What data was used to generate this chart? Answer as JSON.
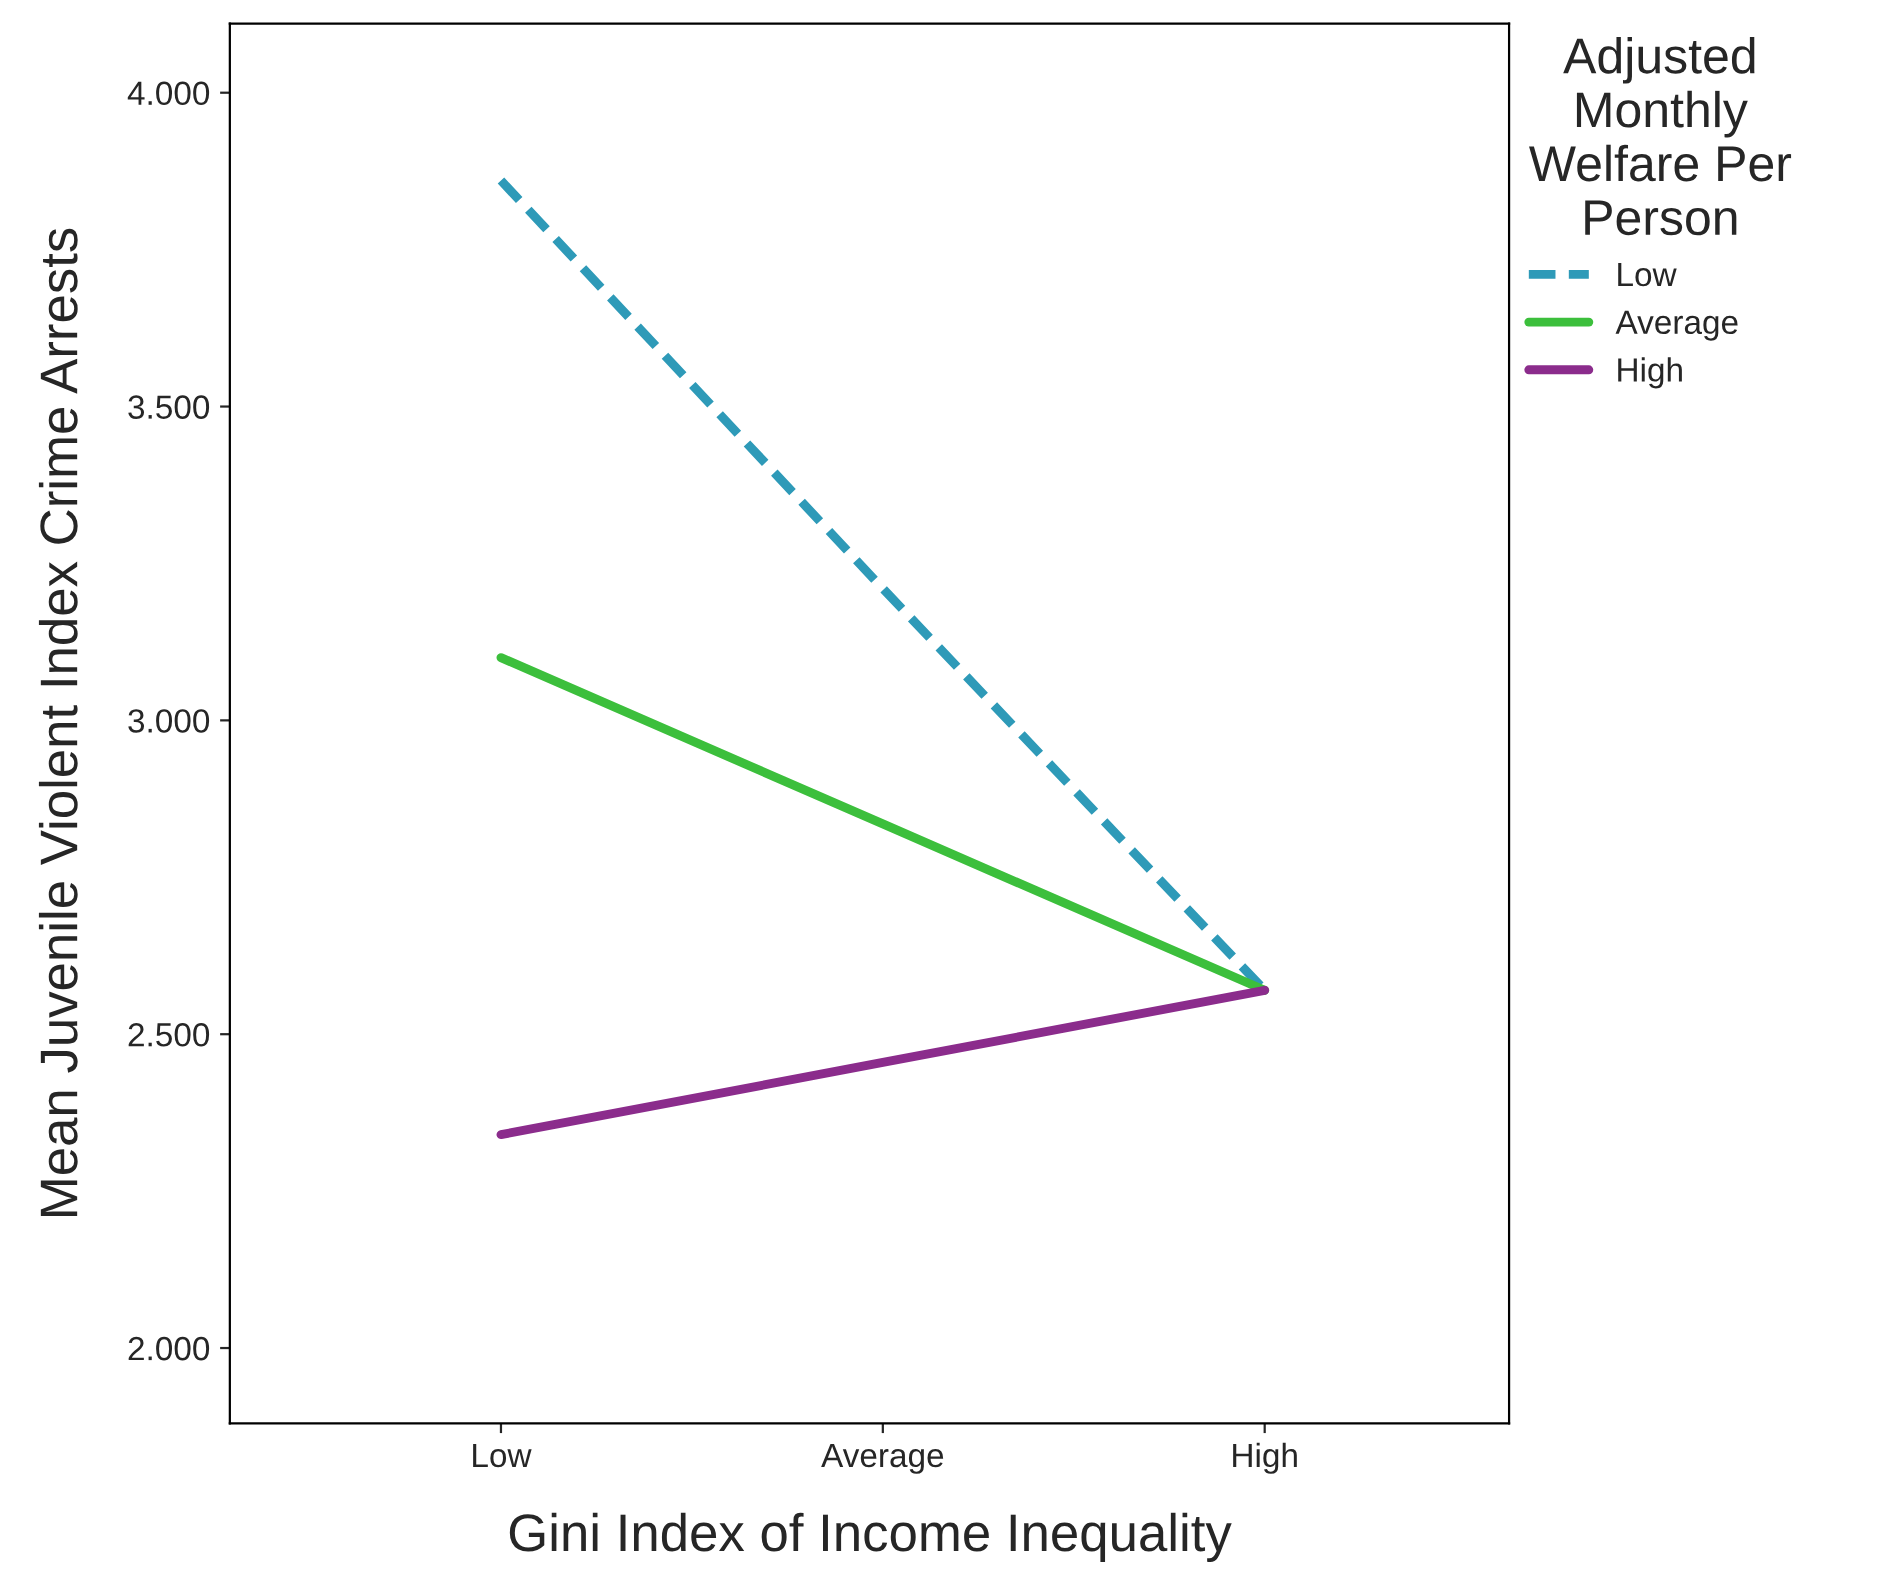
{
  "chart_data": {
    "type": "line",
    "xlabel": "Gini Index of Income Inequality",
    "ylabel": "Mean Juvenile Violent Index Crime Arrests",
    "legend_title": "Adjusted\nMonthly\nWelfare Per\nPerson",
    "categories": [
      "Low",
      "Average",
      "High"
    ],
    "series": [
      {
        "name": "Low",
        "color": "#2e9ab8",
        "line_style": "dashed",
        "values": [
          3.86,
          3.21,
          2.57
        ]
      },
      {
        "name": "Average",
        "color": "#3cbf3c",
        "line_style": "solid",
        "values": [
          3.1,
          2.835,
          2.57
        ]
      },
      {
        "name": "High",
        "color": "#8b2c8c",
        "line_style": "solid",
        "values": [
          2.34,
          2.455,
          2.57
        ]
      }
    ],
    "ylim": [
      1.88,
      4.11
    ],
    "yticks": [
      {
        "value": 2.0,
        "label": "2.000"
      },
      {
        "value": 2.5,
        "label": "2.500"
      },
      {
        "value": 3.0,
        "label": "3.000"
      },
      {
        "value": 3.5,
        "label": "3.500"
      },
      {
        "value": 4.0,
        "label": "4.000"
      }
    ],
    "grid": false,
    "legend": "right"
  }
}
